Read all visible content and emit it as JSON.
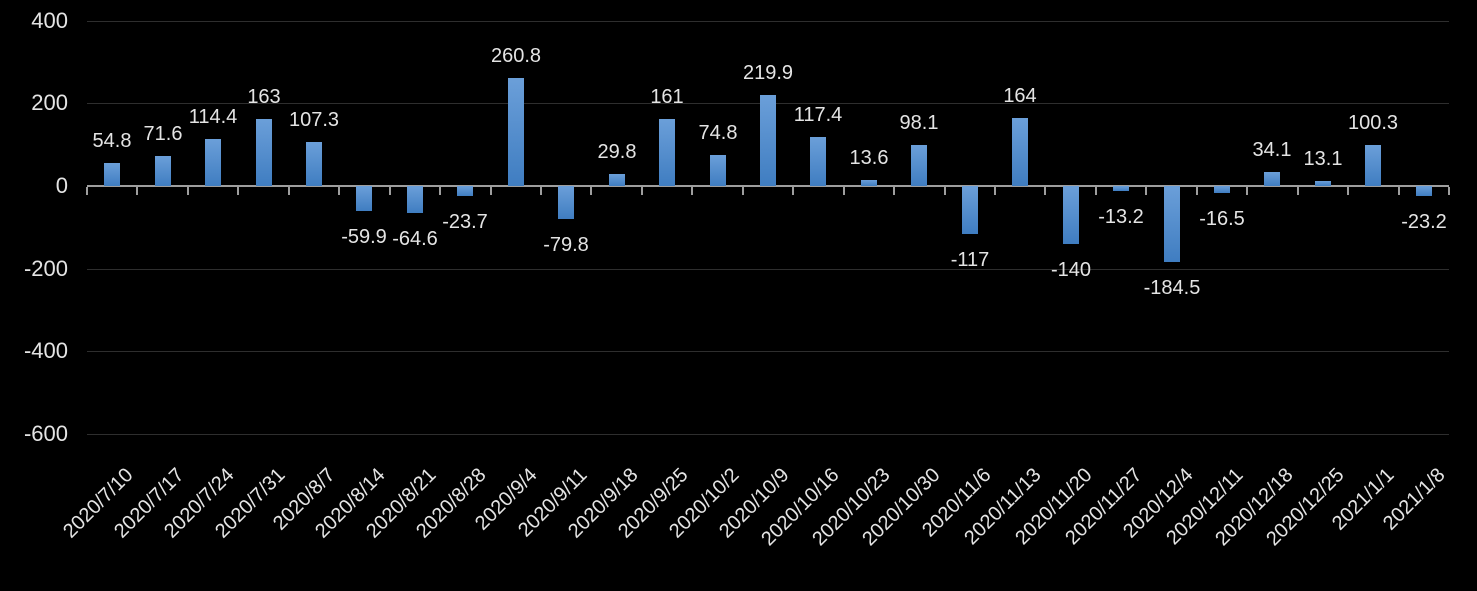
{
  "chart_data": {
    "type": "bar",
    "title": "",
    "xlabel": "",
    "ylabel": "",
    "categories": [
      "2020/7/10",
      "2020/7/17",
      "2020/7/24",
      "2020/7/31",
      "2020/8/7",
      "2020/8/14",
      "2020/8/21",
      "2020/8/28",
      "2020/9/4",
      "2020/9/11",
      "2020/9/18",
      "2020/9/25",
      "2020/10/2",
      "2020/10/9",
      "2020/10/16",
      "2020/10/23",
      "2020/10/30",
      "2020/11/6",
      "2020/11/13",
      "2020/11/20",
      "2020/11/27",
      "2020/12/4",
      "2020/12/11",
      "2020/12/18",
      "2020/12/25",
      "2021/1/1",
      "2021/1/8"
    ],
    "values": [
      54.8,
      71.6,
      114.4,
      163,
      107.3,
      -59.9,
      -64.6,
      -23.7,
      260.8,
      -79.8,
      29.8,
      161,
      74.8,
      219.9,
      117.4,
      13.6,
      98.1,
      -117,
      164,
      -140,
      -13.2,
      -184.5,
      -16.5,
      34.1,
      13.1,
      100.3,
      -23.2
    ],
    "data_labels": [
      "54.8",
      "71.6",
      "114.4",
      "163",
      "107.3",
      "-59.9",
      "-64.6",
      "-23.7",
      "260.8",
      "-79.8",
      "29.8",
      "161",
      "74.8",
      "219.9",
      "117.4",
      "13.6",
      "98.1",
      "-117",
      "164",
      "-140",
      "-13.2",
      "-184.5",
      "-16.5",
      "34.1",
      "13.1",
      "100.3",
      "-23.2"
    ],
    "ylim": [
      -600,
      400
    ],
    "yticks": [
      400,
      200,
      0,
      -200,
      -400,
      -600
    ],
    "ytick_labels": [
      "400",
      "200",
      "0",
      "-200",
      "-400",
      "-600"
    ],
    "grid": true,
    "legend": "none",
    "x_tick_rotation_deg": 45,
    "data_label_position": "outside-end"
  },
  "colors": {
    "background": "#000000",
    "bar_gradient_top": "#6B9FD9",
    "bar_gradient_bottom": "#3F7DC1",
    "axis_line": "#9E9E9E",
    "gridline": "#2E2E2E",
    "label_text": "#E4E4E4"
  }
}
